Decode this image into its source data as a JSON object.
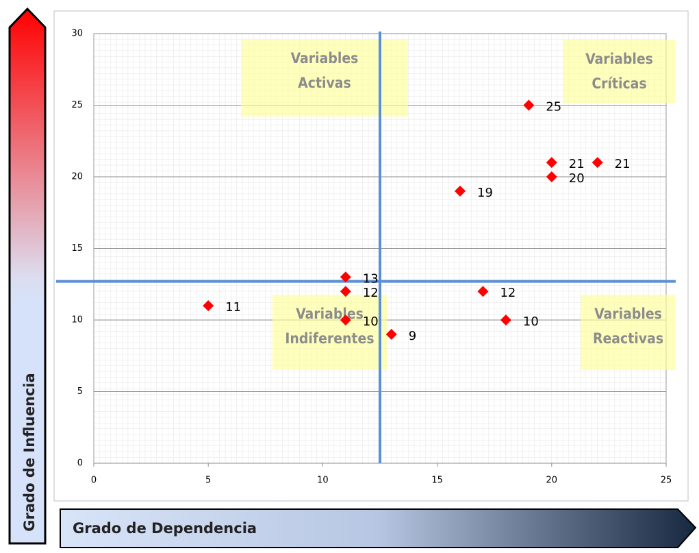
{
  "chart_data": {
    "type": "scatter",
    "x_label": "Grado de Dependencia",
    "y_label": "Grado de Influencia",
    "x": [
      5,
      11,
      11,
      11,
      13,
      16,
      17,
      18,
      19,
      20,
      20,
      22
    ],
    "series": [
      {
        "color": "#ff0000",
        "values": [
          11,
          13,
          12,
          10,
          9,
          19,
          12,
          10,
          25,
          21,
          20,
          21
        ]
      }
    ],
    "xlim": [
      0,
      25
    ],
    "xticks": [
      0,
      5,
      10,
      15,
      20,
      25
    ],
    "ylim": [
      0,
      30
    ],
    "yticks": [
      0,
      5,
      10,
      15,
      20,
      25,
      30
    ],
    "grid": true,
    "quadrant_lines": {
      "x": 12.5,
      "y": 12.7,
      "color": "#5b8fd6"
    },
    "quadrants": [
      {
        "lines": [
          "Variables",
          "Activas"
        ]
      },
      {
        "lines": [
          "Variables",
          "Críticas"
        ]
      },
      {
        "lines": [
          "Variables",
          "Indiferentes"
        ]
      },
      {
        "lines": [
          "Variables",
          "Reactivas"
        ]
      }
    ]
  }
}
